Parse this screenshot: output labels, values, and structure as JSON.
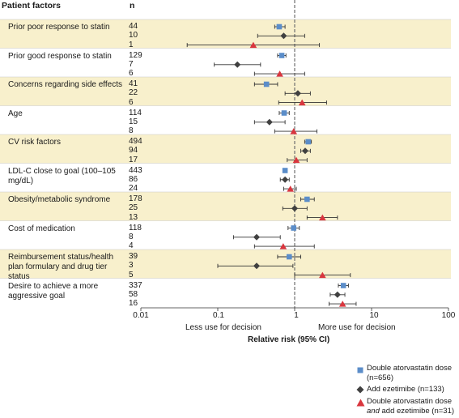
{
  "header": {
    "col1": "Patient factors",
    "col2": "n"
  },
  "chart_data": {
    "type": "forest",
    "x_scale": "log",
    "xlim": [
      0.01,
      100
    ],
    "x_ticks": [
      "0.01",
      "0.1",
      "1",
      "10",
      "100"
    ],
    "x_tick_values": [
      0.01,
      0.1,
      1,
      10,
      100
    ],
    "reference_line": 1,
    "xlabel": "Relative risk (95% CI)",
    "annotation_left": "Less use for decision",
    "annotation_right": "More use for decision",
    "series": [
      {
        "name": "Double atorvastatin dose (n=656)",
        "marker": "square",
        "color": "#5b8dc9"
      },
      {
        "name": "Add ezetimibe (n=133)",
        "marker": "diamond",
        "color": "#404040"
      },
      {
        "name_parts": [
          "Double atorvastatin dose ",
          "and",
          " add ezetimibe (n=31)"
        ],
        "marker": "triangle",
        "color": "#d9363e"
      }
    ],
    "rows": [
      {
        "label": "Prior poor response to statin",
        "n": [
          "44",
          "10",
          "1"
        ],
        "est": [
          [
            0.63,
            0.55,
            0.75
          ],
          [
            0.72,
            0.33,
            1.35
          ],
          [
            0.29,
            0.04,
            2.1
          ]
        ]
      },
      {
        "label": "Prior good response to statin",
        "n": [
          "129",
          "7",
          "6"
        ],
        "est": [
          [
            0.68,
            0.6,
            0.77
          ],
          [
            0.18,
            0.09,
            0.36
          ],
          [
            0.64,
            0.3,
            1.35
          ]
        ]
      },
      {
        "label": "Concerns regarding side effects",
        "n": [
          "41",
          "22",
          "6"
        ],
        "est": [
          [
            0.43,
            0.3,
            0.6
          ],
          [
            1.1,
            0.75,
            1.6
          ],
          [
            1.25,
            0.62,
            2.6
          ]
        ]
      },
      {
        "label": "Age",
        "n": [
          "114",
          "15",
          "8"
        ],
        "est": [
          [
            0.73,
            0.63,
            0.85
          ],
          [
            0.47,
            0.3,
            0.75
          ],
          [
            0.97,
            0.55,
            1.95
          ]
        ]
      },
      {
        "label": "CV risk factors",
        "n": [
          "494",
          "94",
          "17"
        ],
        "est": [
          [
            1.5,
            1.35,
            1.65
          ],
          [
            1.37,
            1.2,
            1.6
          ],
          [
            1.05,
            0.8,
            1.45
          ]
        ]
      },
      {
        "label": "LDL-C close to goal (100–105 mg/dL)",
        "n": [
          "443",
          "86",
          "24"
        ],
        "est": [
          [
            0.75,
            0.72,
            0.78
          ],
          [
            0.75,
            0.65,
            0.85
          ],
          [
            0.88,
            0.72,
            1.05
          ]
        ]
      },
      {
        "label": "Obesity/metabolic syndrome",
        "n": [
          "178",
          "25",
          "13"
        ],
        "est": [
          [
            1.45,
            1.2,
            1.8
          ],
          [
            1.0,
            0.7,
            1.45
          ],
          [
            2.3,
            1.45,
            3.6
          ]
        ]
      },
      {
        "label": "Cost of medication",
        "n": [
          "118",
          "8",
          "4"
        ],
        "est": [
          [
            0.97,
            0.82,
            1.15
          ],
          [
            0.32,
            0.16,
            0.65
          ],
          [
            0.71,
            0.3,
            1.8
          ]
        ]
      },
      {
        "label": "Reimbursement status/health plan formulary and drug tier status",
        "n": [
          "39",
          "3",
          "5"
        ],
        "est": [
          [
            0.85,
            0.6,
            1.2
          ],
          [
            0.32,
            0.1,
            0.95
          ],
          [
            2.3,
            1.0,
            5.3
          ]
        ]
      },
      {
        "label": "Desire to achieve a more aggressive goal",
        "n": [
          "337",
          "58",
          "16"
        ],
        "est": [
          [
            4.3,
            3.7,
            5.0
          ],
          [
            3.6,
            2.9,
            4.5
          ],
          [
            4.2,
            2.8,
            6.3
          ]
        ]
      }
    ]
  }
}
